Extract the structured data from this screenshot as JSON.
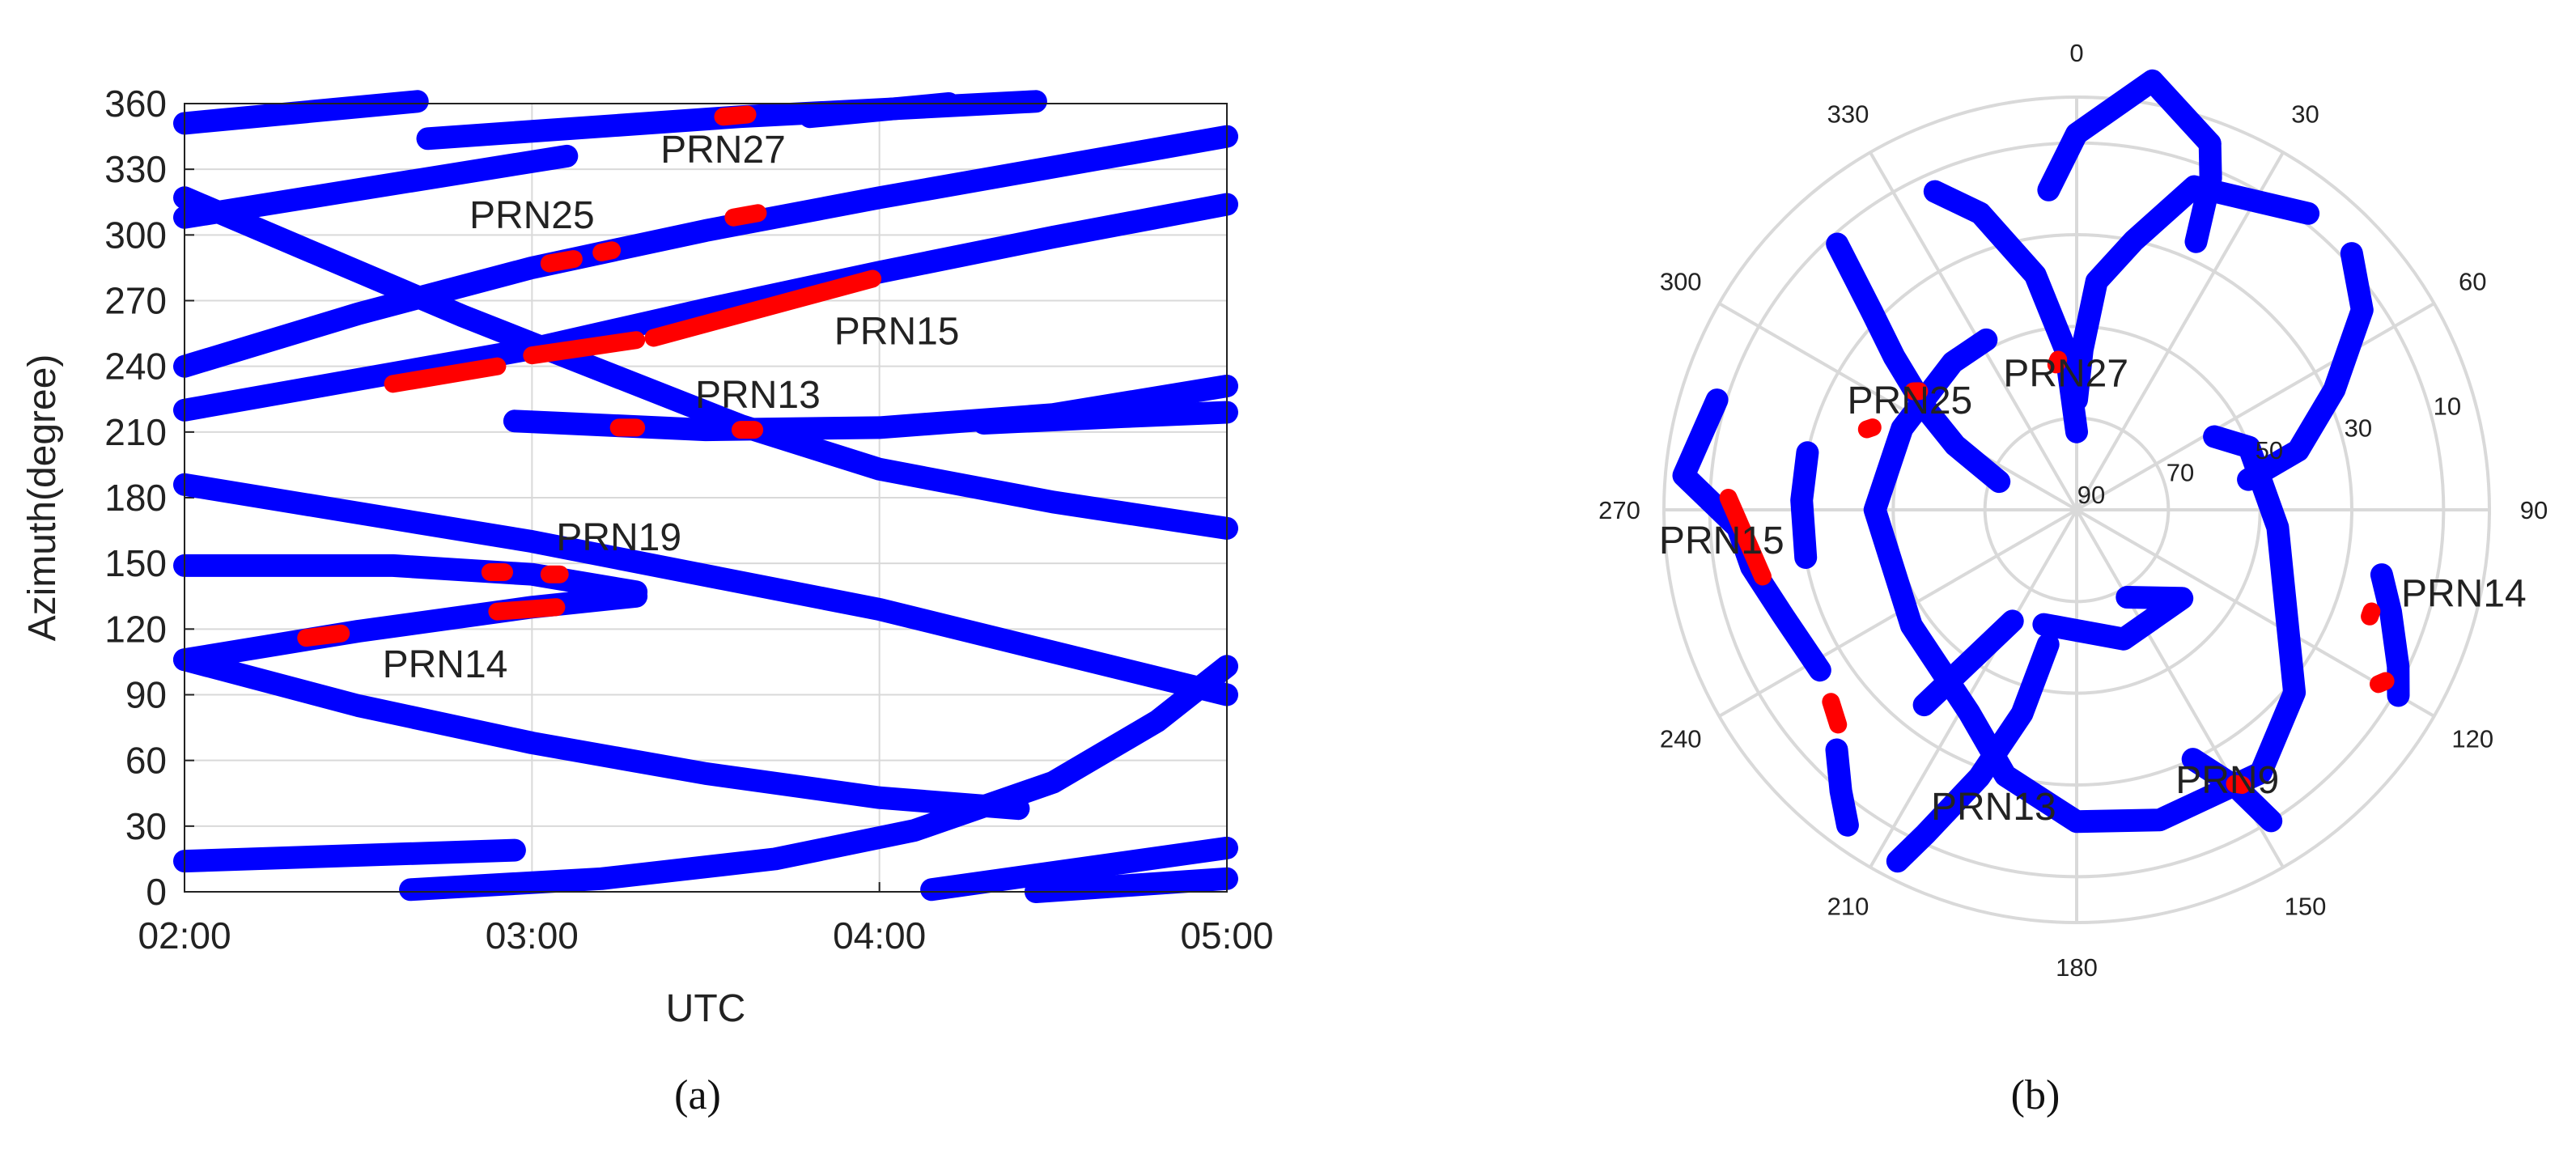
{
  "colors": {
    "track": "#0000ff",
    "highlight": "#ff0000",
    "grid": "#d9d9d9"
  },
  "chart_data": [
    {
      "type": "scatter",
      "panel": "(a)",
      "xlabel": "UTC",
      "ylabel": "Azimuth(degree)",
      "xlim": [
        2.0,
        5.0
      ],
      "ylim": [
        0,
        360
      ],
      "xtick_values": [
        2,
        3,
        4,
        5
      ],
      "xtick_labels": [
        "02:00",
        "03:00",
        "04:00",
        "05:00"
      ],
      "ytick_values": [
        0,
        30,
        60,
        90,
        120,
        150,
        180,
        210,
        240,
        270,
        300,
        330,
        360
      ],
      "ytick_labels": [
        "0",
        "30",
        "60",
        "90",
        "120",
        "150",
        "180",
        "210",
        "240",
        "270",
        "300",
        "330",
        "360"
      ],
      "grid": true,
      "annotations": [
        {
          "text": "PRN27",
          "x": 3.55,
          "y": 333
        },
        {
          "text": "PRN25",
          "x": 3.0,
          "y": 303
        },
        {
          "text": "PRN15",
          "x": 4.05,
          "y": 250
        },
        {
          "text": "PRN13",
          "x": 3.65,
          "y": 221
        },
        {
          "text": "PRN19",
          "x": 3.25,
          "y": 156
        },
        {
          "text": "PRN14",
          "x": 2.75,
          "y": 98
        }
      ],
      "series": [
        {
          "points": [
            [
              2.0,
              351
            ],
            [
              2.67,
              361
            ]
          ]
        },
        {
          "points": [
            [
              2.7,
              344
            ],
            [
              3.6,
              354
            ],
            [
              4.45,
              361
            ]
          ]
        },
        {
          "points": [
            [
              3.8,
              354
            ],
            [
              4.2,
              360
            ]
          ]
        },
        {
          "points": [
            [
              2.0,
              308
            ],
            [
              3.1,
              336
            ]
          ]
        },
        {
          "points": [
            [
              2.0,
              240
            ],
            [
              2.5,
              264
            ],
            [
              3.0,
              285
            ],
            [
              3.5,
              302
            ],
            [
              4.0,
              317
            ],
            [
              4.5,
              331
            ],
            [
              5.0,
              345
            ]
          ]
        },
        {
          "points": [
            [
              2.0,
              220
            ],
            [
              2.5,
              234
            ],
            [
              3.0,
              248
            ],
            [
              3.5,
              266
            ],
            [
              4.0,
              283
            ],
            [
              4.5,
              299
            ],
            [
              5.0,
              314
            ]
          ]
        },
        {
          "points": [
            [
              2.0,
              317
            ],
            [
              2.4,
              290
            ],
            [
              2.8,
              263
            ],
            [
              3.2,
              238
            ],
            [
              3.6,
              213
            ],
            [
              4.0,
              193
            ],
            [
              4.5,
              178
            ],
            [
              5.0,
              166
            ]
          ]
        },
        {
          "points": [
            [
              2.95,
              215
            ],
            [
              3.5,
              211
            ],
            [
              4.0,
              212
            ],
            [
              4.5,
              218
            ],
            [
              5.0,
              231
            ]
          ]
        },
        {
          "points": [
            [
              4.3,
              214
            ],
            [
              4.7,
              217
            ],
            [
              5.0,
              219
            ]
          ]
        },
        {
          "points": [
            [
              2.0,
              186
            ],
            [
              3.0,
              160
            ],
            [
              4.0,
              129
            ],
            [
              5.0,
              90
            ]
          ]
        },
        {
          "points": [
            [
              2.0,
              149
            ],
            [
              2.6,
              149
            ],
            [
              3.0,
              145
            ],
            [
              3.3,
              137
            ]
          ]
        },
        {
          "points": [
            [
              2.0,
              106
            ],
            [
              2.5,
              119
            ],
            [
              3.0,
              130
            ],
            [
              3.3,
              135
            ]
          ]
        },
        {
          "points": [
            [
              2.0,
              106
            ],
            [
              2.5,
              85
            ],
            [
              3.0,
              68
            ],
            [
              3.5,
              54
            ],
            [
              4.0,
              43
            ],
            [
              4.4,
              38
            ]
          ]
        },
        {
          "points": [
            [
              2.0,
              14
            ],
            [
              2.95,
              19
            ]
          ]
        },
        {
          "points": [
            [
              2.65,
              1
            ],
            [
              3.2,
              6
            ],
            [
              3.7,
              15
            ],
            [
              4.1,
              28
            ],
            [
              4.5,
              50
            ],
            [
              4.8,
              78
            ],
            [
              5.0,
              103
            ]
          ]
        },
        {
          "points": [
            [
              4.15,
              1
            ],
            [
              5.0,
              20
            ]
          ]
        },
        {
          "points": [
            [
              4.45,
              0
            ],
            [
              5.0,
              6
            ]
          ]
        }
      ],
      "highlights": [
        {
          "from": [
            3.55,
            354
          ],
          "to": [
            3.62,
            355
          ]
        },
        {
          "from": [
            3.58,
            308
          ],
          "to": [
            3.65,
            310
          ]
        },
        {
          "from": [
            3.05,
            287
          ],
          "to": [
            3.12,
            289
          ]
        },
        {
          "from": [
            3.2,
            292
          ],
          "to": [
            3.23,
            293
          ]
        },
        {
          "from": [
            2.6,
            232
          ],
          "to": [
            2.9,
            240
          ]
        },
        {
          "from": [
            3.0,
            245
          ],
          "to": [
            3.3,
            252
          ]
        },
        {
          "from": [
            3.35,
            253
          ],
          "to": [
            3.98,
            280
          ]
        },
        {
          "from": [
            3.25,
            212
          ],
          "to": [
            3.3,
            212
          ]
        },
        {
          "from": [
            3.6,
            211
          ],
          "to": [
            3.64,
            211
          ]
        },
        {
          "from": [
            2.88,
            146
          ],
          "to": [
            2.92,
            146
          ]
        },
        {
          "from": [
            3.05,
            145
          ],
          "to": [
            3.08,
            145
          ]
        },
        {
          "from": [
            2.35,
            116
          ],
          "to": [
            2.45,
            118
          ]
        },
        {
          "from": [
            2.9,
            128
          ],
          "to": [
            3.07,
            130
          ]
        }
      ]
    },
    {
      "type": "polar",
      "panel": "(b)",
      "theta_ticks": [
        "0",
        "30",
        "60",
        "90",
        "120",
        "150",
        "180",
        "210",
        "240",
        "270",
        "300",
        "330"
      ],
      "theta_tick_values": [
        0,
        30,
        60,
        90,
        120,
        150,
        180,
        210,
        240,
        270,
        300,
        330
      ],
      "elevation_labels": [
        "90",
        "70",
        "50",
        "30",
        "10"
      ],
      "annotations": [
        {
          "text": "PRN27",
          "az": 355,
          "el": 63
        },
        {
          "text": "PRN25",
          "az": 300,
          "el": 48
        },
        {
          "text": "PRN15",
          "az": 263,
          "el": 12
        },
        {
          "text": "PRN14",
          "az": 104,
          "el": 3
        },
        {
          "text": "PRN13",
          "az": 195,
          "el": 20
        },
        {
          "text": "PRN9",
          "az": 152,
          "el": 20
        }
      ],
      "series": [
        {
          "points": [
            [
              336,
              14
            ],
            [
              342,
              22
            ],
            [
              350,
              38
            ],
            [
              356,
              55
            ],
            [
              0,
              73
            ]
          ]
        },
        {
          "points": [
            [
              355,
              20
            ],
            [
              0,
              8
            ],
            [
              10,
              -5
            ],
            [
              20,
              5
            ]
          ]
        },
        {
          "points": [
            [
              20,
              5
            ],
            [
              22,
              12
            ],
            [
              24,
              26
            ]
          ]
        },
        {
          "points": [
            [
              0,
              66
            ],
            [
              2,
              55
            ],
            [
              5,
              40
            ],
            [
              12,
              30
            ],
            [
              20,
              15
            ],
            [
              38,
              8
            ]
          ]
        },
        {
          "points": [
            [
              47,
              8
            ],
            [
              55,
              14
            ],
            [
              65,
              28
            ],
            [
              75,
              40
            ],
            [
              80,
              52
            ]
          ]
        },
        {
          "points": [
            [
              318,
              12
            ],
            [
              314,
              28
            ],
            [
              310,
              38
            ],
            [
              304,
              50
            ],
            [
              298,
              60
            ],
            [
              290,
              72
            ]
          ]
        },
        {
          "points": [
            [
              287,
              8
            ],
            [
              275,
              4
            ],
            [
              267,
              16
            ],
            [
              260,
              18
            ],
            [
              250,
              22
            ],
            [
              238,
              24
            ]
          ]
        },
        {
          "points": [
            [
              282,
              30
            ],
            [
              272,
              30
            ],
            [
              260,
              30
            ]
          ]
        },
        {
          "points": [
            [
              225,
              16
            ],
            [
              220,
              10
            ],
            [
              216,
              5
            ]
          ]
        },
        {
          "points": [
            [
              207,
              4
            ],
            [
              205,
              12
            ],
            [
              200,
              28
            ],
            [
              195,
              44
            ],
            [
              192,
              60
            ]
          ]
        },
        {
          "points": [
            [
              332,
              48
            ],
            [
              320,
              48
            ],
            [
              295,
              48
            ],
            [
              270,
              46
            ],
            [
              235,
              46
            ],
            [
              208,
              40
            ],
            [
              195,
              30
            ],
            [
              180,
              22
            ],
            [
              165,
              20
            ],
            [
              145,
              20
            ],
            [
              130,
              28
            ],
            [
              110,
              42
            ],
            [
              95,
              46
            ],
            [
              70,
              50
            ],
            [
              62,
              56
            ]
          ]
        },
        {
          "points": [
            [
              218,
              36
            ],
            [
              215,
              50
            ],
            [
              210,
              62
            ]
          ]
        },
        {
          "points": [
            [
              102,
              22
            ],
            [
              108,
              18
            ],
            [
              116,
              12
            ],
            [
              120,
              9
            ]
          ]
        },
        {
          "points": [
            [
              196,
              64
            ],
            [
              160,
              60
            ],
            [
              130,
              60
            ],
            [
              150,
              68
            ]
          ]
        },
        {
          "points": [
            [
              155,
              30
            ],
            [
              150,
              20
            ],
            [
              148,
              10
            ]
          ]
        }
      ],
      "highlights": [
        {
          "from": [
            352,
            58
          ],
          "to": [
            353,
            57
          ]
        },
        {
          "from": [
            307,
            47
          ],
          "to": [
            306,
            46
          ]
        },
        {
          "from": [
            292,
            42
          ],
          "to": [
            291,
            41
          ]
        },
        {
          "from": [
            272,
            14
          ],
          "to": [
            258,
            20
          ]
        },
        {
          "from": [
            232,
            22
          ],
          "to": [
            228,
            20
          ]
        },
        {
          "from": [
            110,
            22
          ],
          "to": [
            109,
            22
          ]
        },
        {
          "from": [
            120,
            14
          ],
          "to": [
            119,
            13
          ]
        },
        {
          "from": [
            150,
            21
          ],
          "to": [
            149,
            20
          ]
        }
      ]
    }
  ],
  "captions": {
    "left": "(a)",
    "right": "(b)"
  }
}
